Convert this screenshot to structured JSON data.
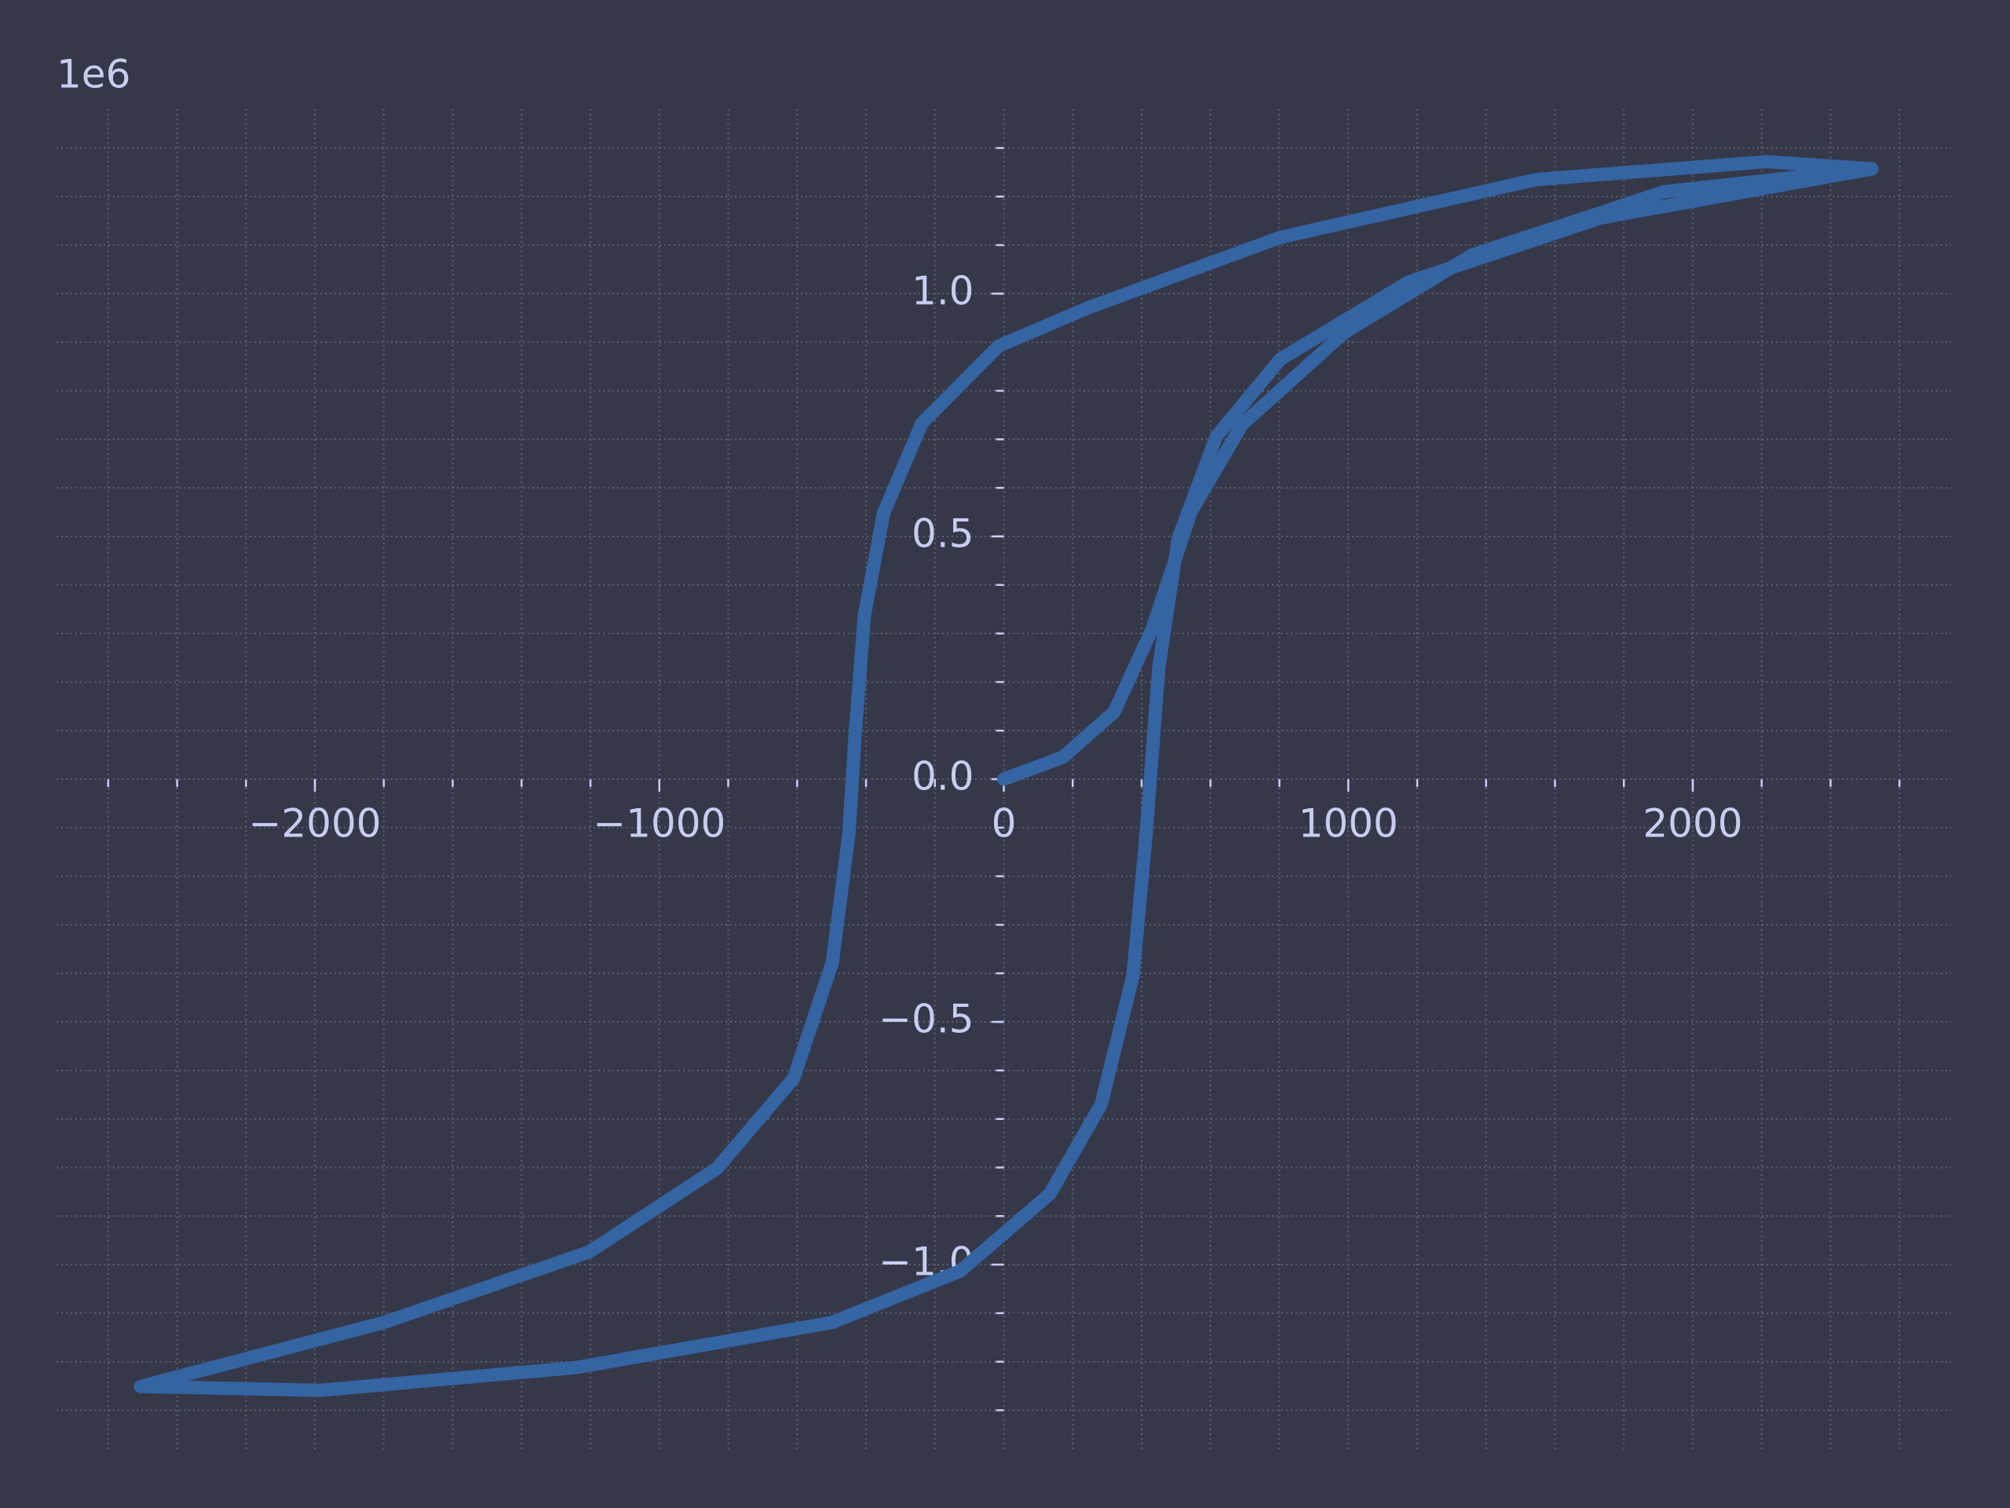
{
  "chart_data": {
    "type": "line",
    "y_offset_label": "1e6",
    "xlim": [
      -2750,
      2750
    ],
    "ylim": [
      -1.38,
      1.38
    ],
    "xticks": [
      {
        "value": -2000,
        "label": "−2000"
      },
      {
        "value": -1000,
        "label": "−1000"
      },
      0,
      1000,
      2000
    ],
    "yticks": [
      {
        "value": -1,
        "label": "−1.0"
      },
      {
        "value": -0.5,
        "label": "−0.5"
      },
      {
        "value": 0,
        "label": "0.0"
      },
      {
        "value": 0.5,
        "label": "0.5"
      },
      {
        "value": 1,
        "label": "1.0"
      }
    ],
    "xminorticks": [
      -2600,
      -2400,
      -2200,
      -2000,
      -1800,
      -1600,
      -1400,
      -1200,
      -1000,
      -800,
      -600,
      -400,
      -200,
      0,
      200,
      400,
      600,
      800,
      1000,
      1200,
      1400,
      1600,
      1800,
      2000,
      2200,
      2400,
      2600
    ],
    "yminorticks": [
      -1.3,
      -1.2,
      -1.1,
      -1.0,
      -0.9,
      -0.8,
      -0.7,
      -0.6,
      -0.5,
      -0.4,
      -0.3,
      -0.2,
      -0.1,
      0,
      0.1,
      0.2,
      0.3,
      0.4,
      0.5,
      0.6,
      0.7,
      0.8,
      0.9,
      1.0,
      1.1,
      1.2,
      1.3
    ],
    "grid": true,
    "series": [
      {
        "color": "#3464a2",
        "x": [
          0,
          171,
          320,
          431,
          543,
          691,
          989,
          1361,
          1918,
          2520,
          2216,
          1546,
          803,
          245,
          -15,
          -238,
          -349,
          -405,
          -431,
          -450,
          -498,
          -610,
          -833,
          -1204,
          -1799,
          -2506,
          -1985,
          -1242,
          -498,
          -126,
          134,
          283,
          375,
          413,
          450,
          506,
          617,
          803,
          1175,
          1732,
          2520
        ],
        "values": [
          0,
          0.045,
          0.138,
          0.31,
          0.55,
          0.73,
          0.92,
          1.08,
          1.21,
          1.257,
          1.272,
          1.235,
          1.116,
          0.971,
          0.892,
          0.733,
          0.548,
          0.336,
          0.098,
          -0.114,
          -0.378,
          -0.616,
          -0.802,
          -0.974,
          -1.119,
          -1.251,
          -1.259,
          -1.212,
          -1.119,
          -1.013,
          -0.854,
          -0.669,
          -0.405,
          -0.114,
          0.23,
          0.495,
          0.706,
          0.865,
          1.024,
          1.156,
          1.257
        ]
      }
    ]
  }
}
